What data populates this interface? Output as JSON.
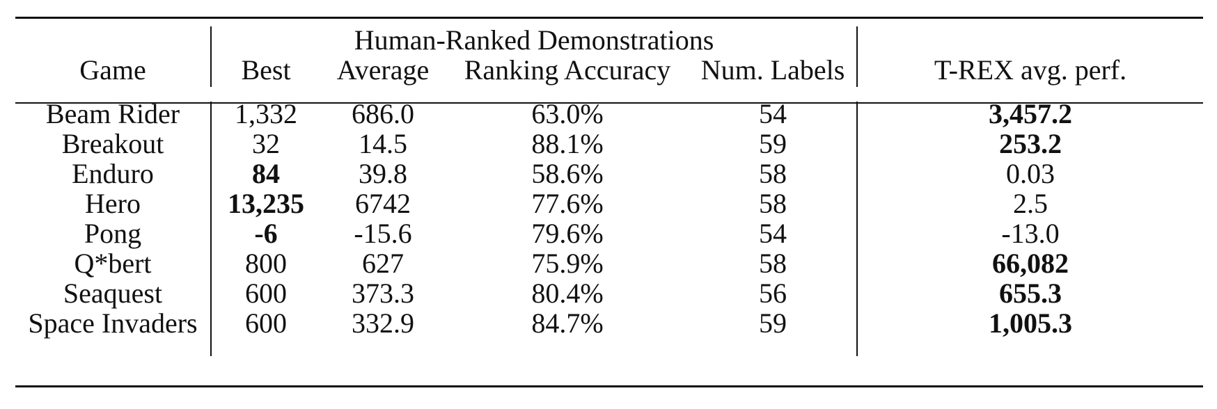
{
  "table": {
    "group_header": "Human-Ranked Demonstrations",
    "columns": [
      "Game",
      "Best",
      "Average",
      "Ranking Accuracy",
      "Num. Labels",
      "T-REX avg. perf."
    ],
    "rows": [
      {
        "game": "Beam Rider",
        "best": "1,332",
        "average": "686.0",
        "accuracy": "63.0%",
        "labels": "54",
        "trex": "3,457.2"
      },
      {
        "game": "Breakout",
        "best": "32",
        "average": "14.5",
        "accuracy": "88.1%",
        "labels": "59",
        "trex": "253.2"
      },
      {
        "game": "Enduro",
        "best": "84",
        "average": "39.8",
        "accuracy": "58.6%",
        "labels": "58",
        "trex": "0.03"
      },
      {
        "game": "Hero",
        "best": "13,235",
        "average": "6742",
        "accuracy": "77.6%",
        "labels": "58",
        "trex": "2.5"
      },
      {
        "game": "Pong",
        "best": "-6",
        "average": "-15.6",
        "accuracy": "79.6%",
        "labels": "54",
        "trex": "-13.0"
      },
      {
        "game": "Q*bert",
        "best": "800",
        "average": "627",
        "accuracy": "75.9%",
        "labels": "58",
        "trex": "66,082"
      },
      {
        "game": "Seaquest",
        "best": "600",
        "average": "373.3",
        "accuracy": "80.4%",
        "labels": "56",
        "trex": "655.3"
      },
      {
        "game": "Space Invaders",
        "best": "600",
        "average": "332.9",
        "accuracy": "84.7%",
        "labels": "59",
        "trex": "1,005.3"
      }
    ]
  }
}
